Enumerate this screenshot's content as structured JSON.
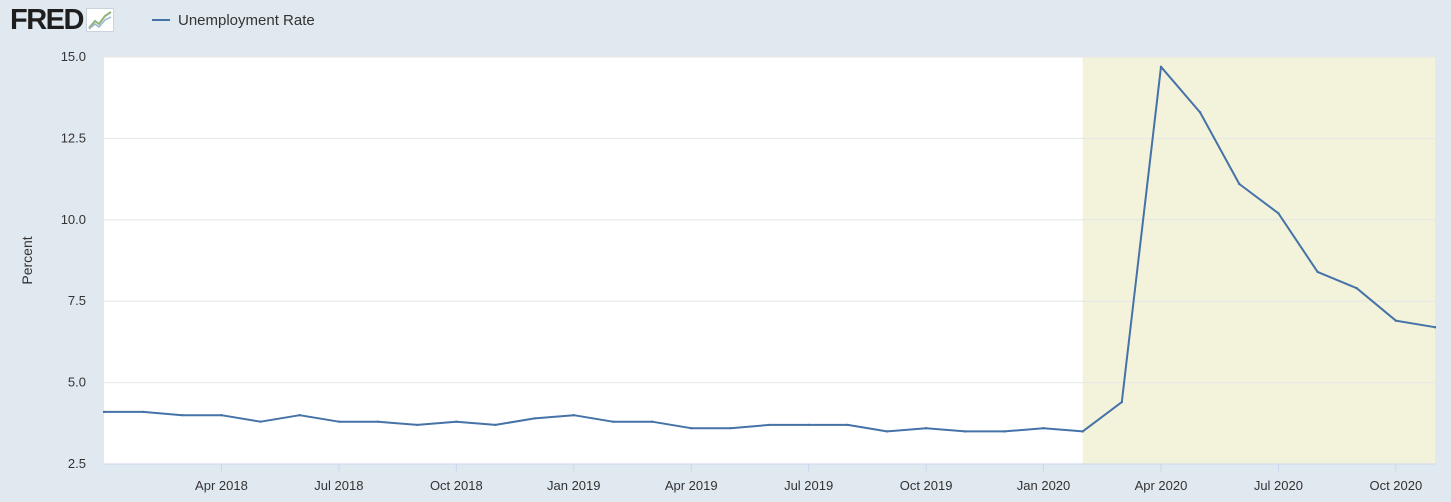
{
  "header": {
    "logo_text": "FRED",
    "logo_icon": "trend-graph-icon"
  },
  "colors": {
    "page_background": "#e1e9f0",
    "plot_background": "#ffffff",
    "series_line": "#4572a7",
    "recession_band": "#f3f3dc",
    "gridline": "#e6e6e6"
  },
  "chart_data": {
    "type": "line",
    "title": "",
    "xlabel": "",
    "ylabel": "Percent",
    "ylim": [
      2.5,
      15.0
    ],
    "xlim": [
      "2018-01",
      "2020-11"
    ],
    "grid": true,
    "legend_position": "top-left",
    "yticks": [
      "2.5",
      "5.0",
      "7.5",
      "10.0",
      "12.5",
      "15.0"
    ],
    "xticks": [
      {
        "date": "2018-04",
        "label": "Apr 2018"
      },
      {
        "date": "2018-07",
        "label": "Jul 2018"
      },
      {
        "date": "2018-10",
        "label": "Oct 2018"
      },
      {
        "date": "2019-01",
        "label": "Jan 2019"
      },
      {
        "date": "2019-04",
        "label": "Apr 2019"
      },
      {
        "date": "2019-07",
        "label": "Jul 2019"
      },
      {
        "date": "2019-10",
        "label": "Oct 2019"
      },
      {
        "date": "2020-01",
        "label": "Jan 2020"
      },
      {
        "date": "2020-04",
        "label": "Apr 2020"
      },
      {
        "date": "2020-07",
        "label": "Jul 2020"
      },
      {
        "date": "2020-10",
        "label": "Oct 2020"
      }
    ],
    "shaded_region": {
      "start": "2020-02",
      "end": "2020-11"
    },
    "series": [
      {
        "name": "Unemployment Rate",
        "x": [
          "2018-01",
          "2018-02",
          "2018-03",
          "2018-04",
          "2018-05",
          "2018-06",
          "2018-07",
          "2018-08",
          "2018-09",
          "2018-10",
          "2018-11",
          "2018-12",
          "2019-01",
          "2019-02",
          "2019-03",
          "2019-04",
          "2019-05",
          "2019-06",
          "2019-07",
          "2019-08",
          "2019-09",
          "2019-10",
          "2019-11",
          "2019-12",
          "2020-01",
          "2020-02",
          "2020-03",
          "2020-04",
          "2020-05",
          "2020-06",
          "2020-07",
          "2020-08",
          "2020-09",
          "2020-10",
          "2020-11"
        ],
        "values": [
          4.1,
          4.1,
          4.0,
          4.0,
          3.8,
          4.0,
          3.8,
          3.8,
          3.7,
          3.8,
          3.7,
          3.9,
          4.0,
          3.8,
          3.8,
          3.6,
          3.6,
          3.7,
          3.7,
          3.7,
          3.5,
          3.6,
          3.5,
          3.5,
          3.6,
          3.5,
          4.4,
          14.7,
          13.3,
          11.1,
          10.2,
          8.4,
          7.9,
          6.9,
          6.7
        ]
      }
    ]
  }
}
